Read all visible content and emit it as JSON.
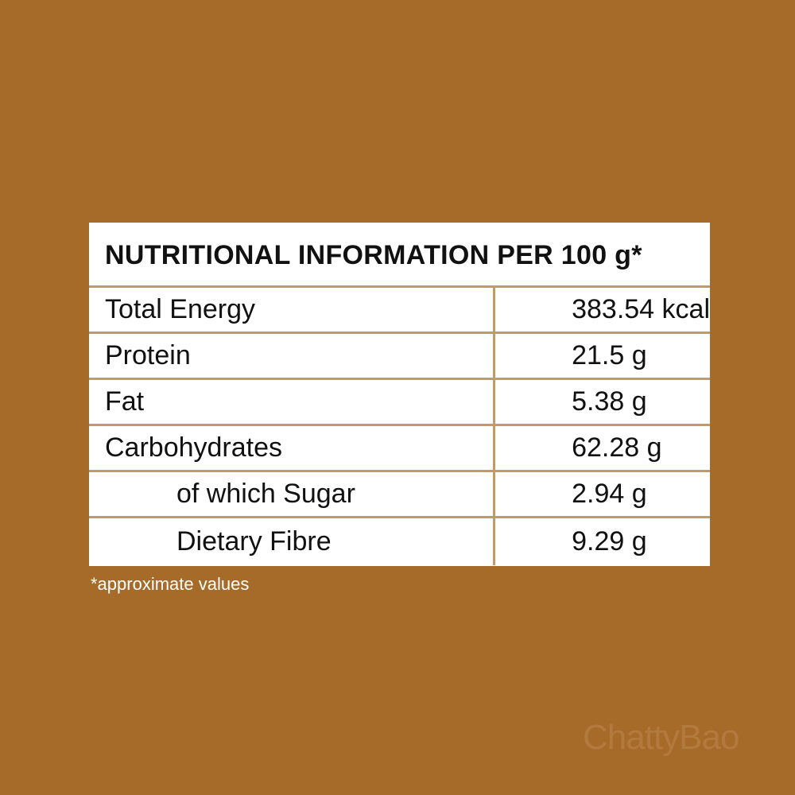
{
  "header": {
    "title": "NUTRITIONAL INFORMATION PER 100 g*"
  },
  "table": {
    "rows": [
      [
        "Total Energy",
        "383.54 kcal"
      ],
      [
        "Protein",
        "21.5 g"
      ],
      [
        "Fat",
        "5.38 g"
      ],
      [
        "Carbohydrates",
        "62.28 g"
      ],
      [
        "of which Sugar",
        "2.94 g"
      ],
      [
        "Dietary Fibre",
        "9.29 g"
      ]
    ]
  },
  "footnote": "*approximate values",
  "watermark": "ChattyBao"
}
